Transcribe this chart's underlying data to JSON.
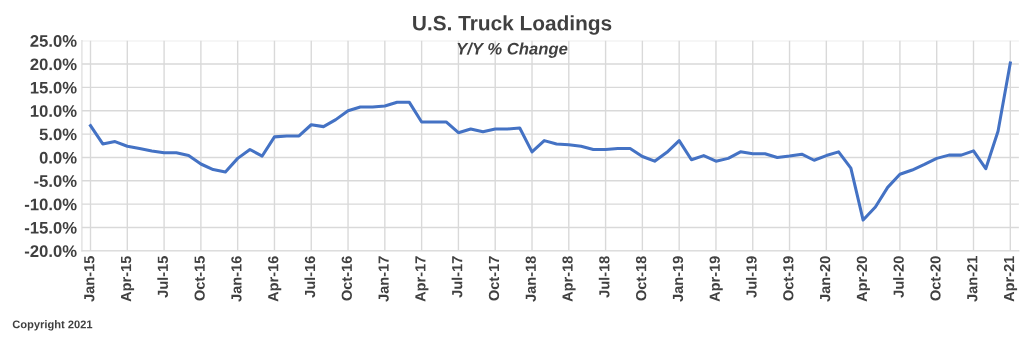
{
  "chart_data": {
    "type": "line",
    "title": "U.S. Truck Loadings",
    "subtitle": "Y/Y % Change",
    "annotations": [
      "Copyright 2021"
    ],
    "categories": [
      "Jan-15",
      null,
      null,
      "Apr-15",
      null,
      null,
      "Jul-15",
      null,
      null,
      "Oct-15",
      null,
      null,
      "Jan-16",
      null,
      null,
      "Apr-16",
      null,
      null,
      "Jul-16",
      null,
      null,
      "Oct-16",
      null,
      null,
      "Jan-17",
      null,
      null,
      "Apr-17",
      null,
      null,
      "Jul-17",
      null,
      null,
      "Oct-17",
      null,
      null,
      "Jan-18",
      null,
      null,
      "Apr-18",
      null,
      null,
      "Jul-18",
      null,
      null,
      "Oct-18",
      null,
      null,
      "Jan-19",
      null,
      null,
      "Apr-19",
      null,
      null,
      "Jul-19",
      null,
      null,
      "Oct-19",
      null,
      null,
      "Jan-20",
      null,
      null,
      "Apr-20",
      null,
      null,
      "Jul-20",
      null,
      null,
      "Oct-20",
      null,
      null,
      "Jan-21",
      null,
      null,
      "Apr-21"
    ],
    "series": [
      {
        "color": "#4472c4",
        "values": [
          6.8,
          2.9,
          3.4,
          2.4,
          1.9,
          1.4,
          1.0,
          1.0,
          0.4,
          -1.4,
          -2.6,
          -3.1,
          -0.2,
          1.7,
          0.3,
          4.4,
          4.6,
          4.6,
          7.0,
          6.6,
          8.1,
          10.0,
          10.8,
          10.8,
          11.0,
          11.8,
          11.8,
          7.6,
          7.6,
          7.6,
          5.3,
          6.1,
          5.5,
          6.1,
          6.1,
          6.3,
          1.2,
          3.6,
          2.9,
          2.7,
          2.4,
          1.7,
          1.7,
          1.9,
          1.9,
          0.2,
          -0.8,
          1.1,
          3.6,
          -0.5,
          0.4,
          -0.8,
          -0.2,
          1.2,
          0.8,
          0.8,
          0.0,
          0.3,
          0.7,
          -0.6,
          0.4,
          1.2,
          -2.3,
          -13.4,
          -10.6,
          -6.4,
          -3.6,
          -2.7,
          -1.5,
          -0.2,
          0.5,
          0.5,
          1.4,
          -2.4,
          5.6,
          20.2
        ]
      }
    ],
    "ylim": [
      -20,
      25
    ],
    "yticks": [
      {
        "value": -20,
        "label": "-20.0%"
      },
      {
        "value": -15,
        "label": "-15.0%"
      },
      {
        "value": -10,
        "label": "-10.0%"
      },
      {
        "value": -5,
        "label": "-5.0%"
      },
      {
        "value": 0,
        "label": "0.0%"
      },
      {
        "value": 5,
        "label": "5.0%"
      },
      {
        "value": 10,
        "label": "10.0%"
      },
      {
        "value": 15,
        "label": "15.0%"
      },
      {
        "value": 20,
        "label": "20.0%"
      },
      {
        "value": 25,
        "label": "25.0%"
      }
    ],
    "grid": true,
    "marker": "none",
    "line_style": "solid"
  }
}
